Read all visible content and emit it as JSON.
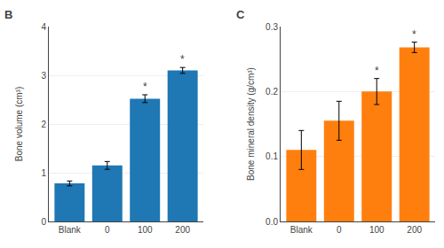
{
  "chart_data": [
    {
      "type": "bar",
      "title": "B",
      "categories": [
        "Blank",
        "0",
        "100",
        "200"
      ],
      "values": [
        0.78,
        1.15,
        2.52,
        3.1
      ],
      "errors": [
        0.05,
        0.08,
        0.08,
        0.06
      ],
      "y_label": "Bone volume (cm³)",
      "ylim": [
        0,
        4
      ],
      "yticks": [
        0,
        1,
        2,
        3,
        4
      ],
      "annotations": [
        {
          "category": "100",
          "text": "*"
        },
        {
          "category": "200",
          "text": "*"
        }
      ]
    },
    {
      "type": "bar",
      "title": "C",
      "categories": [
        "Blank",
        "0",
        "100",
        "200"
      ],
      "values": [
        0.11,
        0.155,
        0.2,
        0.268
      ],
      "errors": [
        0.03,
        0.03,
        0.02,
        0.008
      ],
      "y_label": "Bone mineral density (g/cm³)",
      "ylim": [
        0,
        0.3
      ],
      "yticks": [
        {
          "value": 0.0,
          "label": "0.0"
        },
        0.1,
        0.2,
        0.3
      ],
      "annotations": [
        {
          "category": "100",
          "text": "*"
        },
        {
          "category": "200",
          "text": "*"
        }
      ]
    }
  ]
}
